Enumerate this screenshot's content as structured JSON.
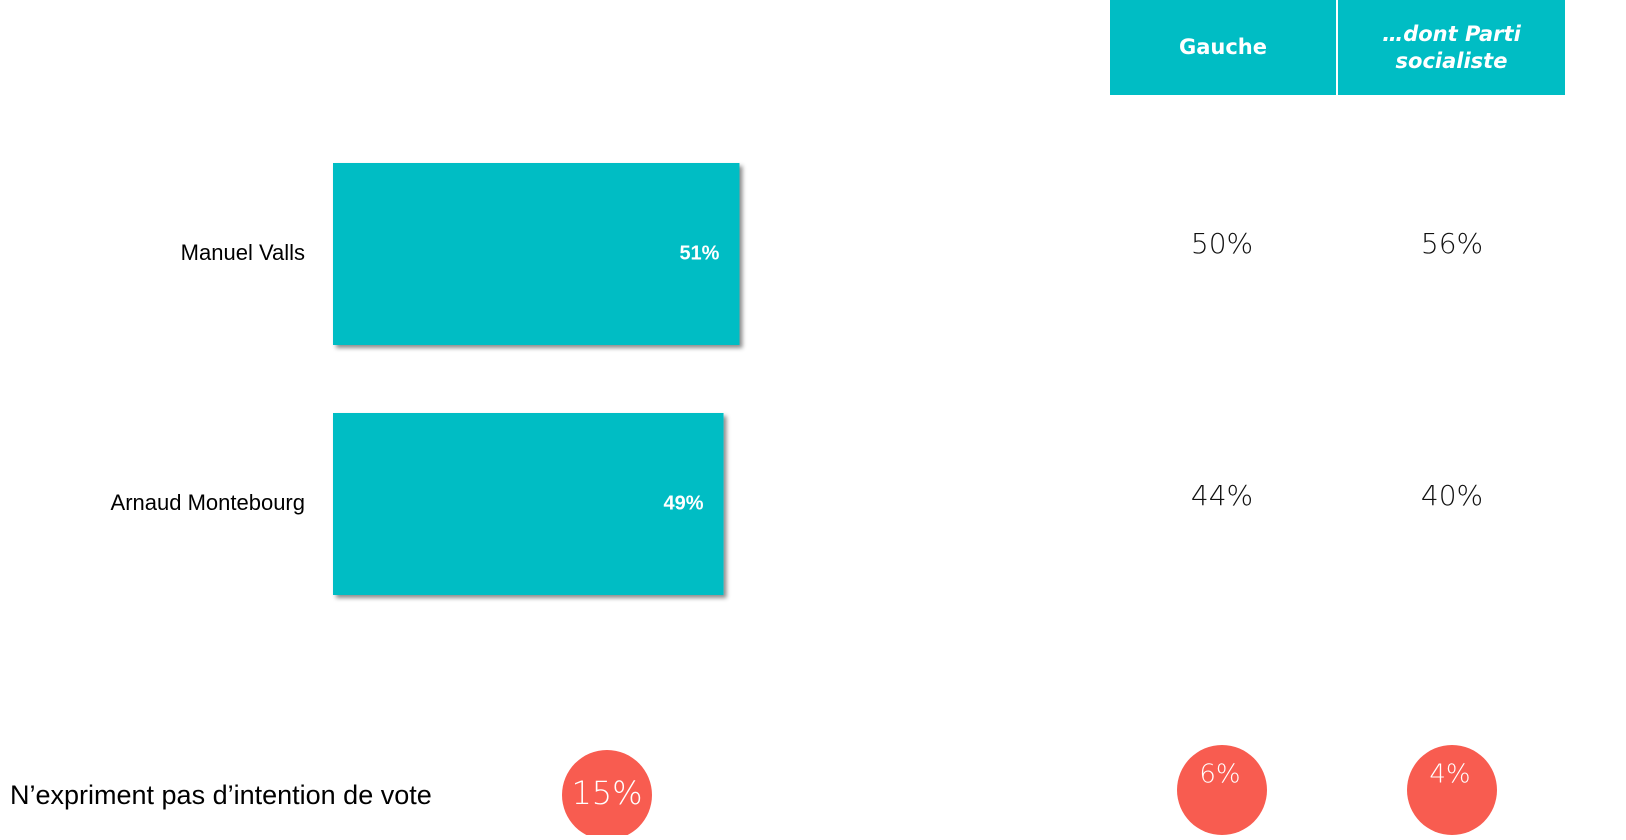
{
  "chart_data": {
    "type": "bar",
    "orientation": "horizontal",
    "categories": [
      "Manuel Valls",
      "Arnaud Montebourg"
    ],
    "values": [
      51,
      49
    ],
    "value_labels": [
      "51%",
      "49%"
    ],
    "color": "#00bdc4"
  },
  "table": {
    "columns": [
      "Gauche",
      "…dont Parti socialiste"
    ],
    "rows": [
      [
        "50%",
        "56%"
      ],
      [
        "44%",
        "40%"
      ]
    ]
  },
  "no_intention": {
    "label": "N’expriment pas d’intention de vote",
    "total": "15%",
    "columns": [
      "6%",
      "4%"
    ]
  }
}
